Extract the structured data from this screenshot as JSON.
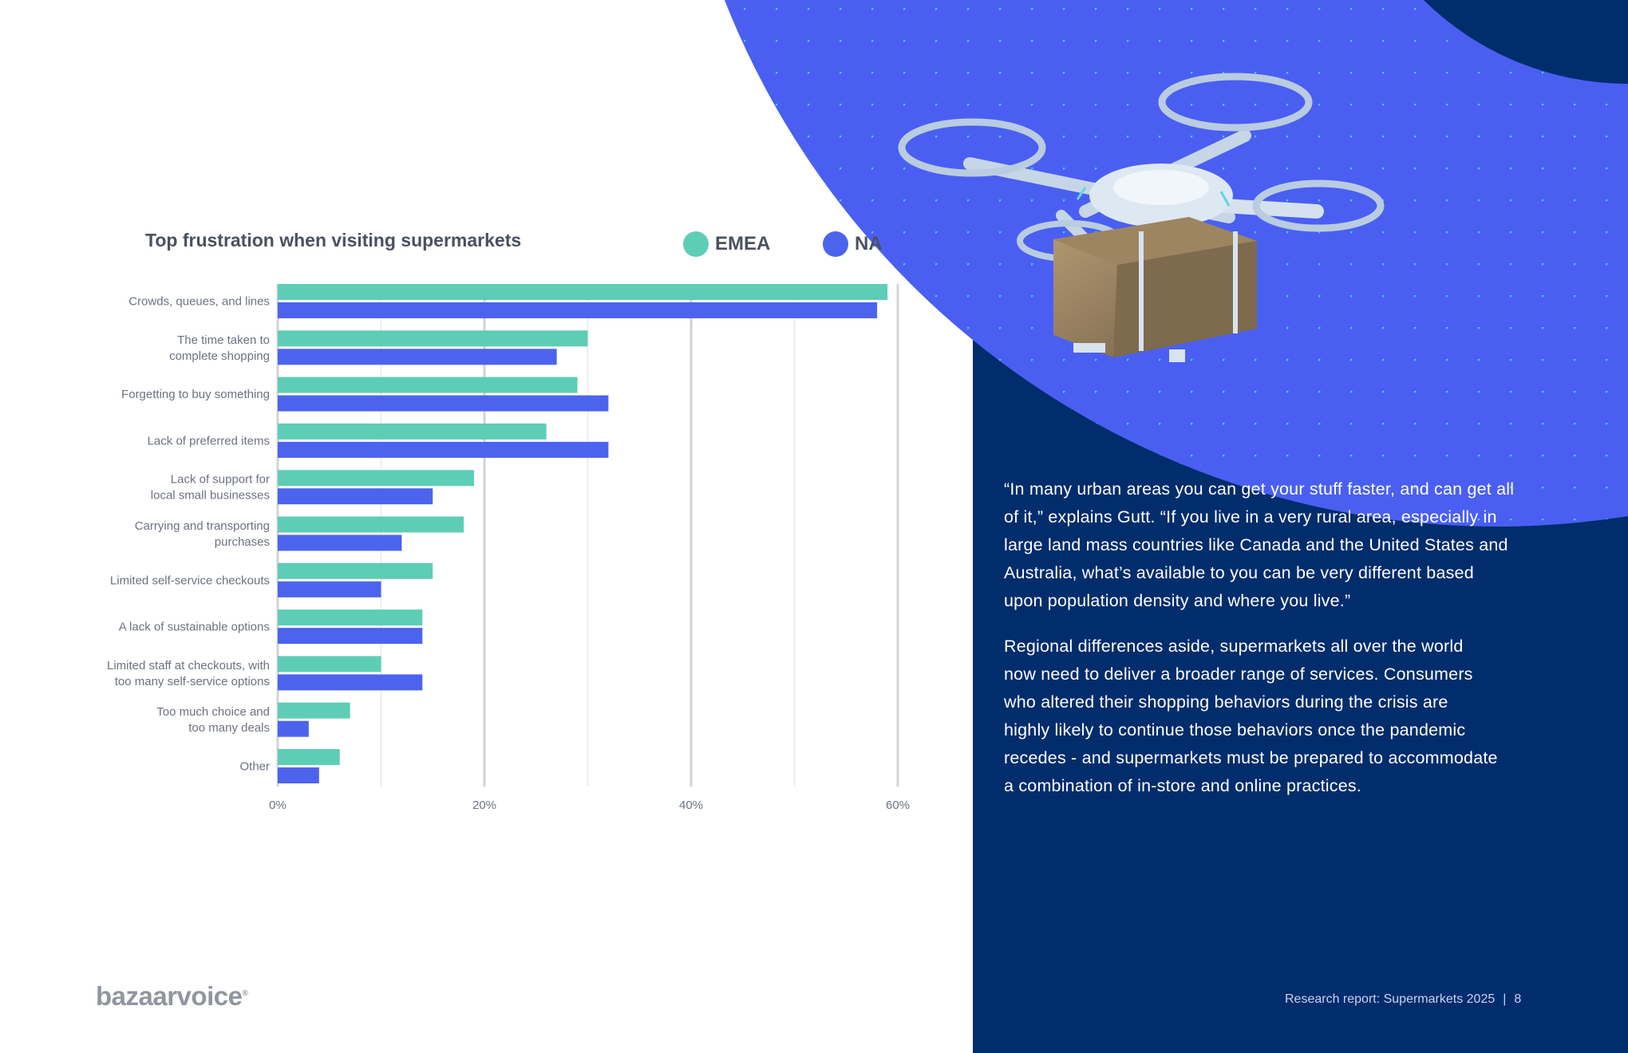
{
  "colors": {
    "emea": "#5ecdb5",
    "na": "#4c63ee",
    "navy": "#022d6c",
    "blue_circle": "#4a5ff2",
    "dot": "#3ad2d6",
    "grid": "#d4d7dc",
    "axis_text": "#6b7280"
  },
  "chart_data": {
    "type": "bar",
    "orientation": "horizontal",
    "title": "Top frustration when visiting supermarkets",
    "categories": [
      [
        "Crowds, queues, and lines"
      ],
      [
        "The time taken to",
        "complete shopping"
      ],
      [
        "Forgetting to buy something"
      ],
      [
        "Lack of preferred items"
      ],
      [
        "Lack of  support for",
        "local small businesses"
      ],
      [
        "Carrying and transporting",
        "purchases"
      ],
      [
        "Limited self-service checkouts"
      ],
      [
        "A lack of sustainable options"
      ],
      [
        "Limited staff at checkouts, with",
        "too many self-service options"
      ],
      [
        "Too much choice and",
        "too many deals"
      ],
      [
        "Other"
      ]
    ],
    "series": [
      {
        "name": "EMEA",
        "values": [
          59,
          30,
          29,
          26,
          19,
          18,
          15,
          14,
          10,
          7,
          6
        ]
      },
      {
        "name": "NA",
        "values": [
          58,
          27,
          32,
          32,
          15,
          12,
          10,
          14,
          14,
          3,
          4
        ]
      }
    ],
    "xlim": [
      0,
      60
    ],
    "xticks": [
      "0%",
      "20%",
      "40%",
      "60%"
    ],
    "legend_position": "top-right",
    "xlabel": "",
    "ylabel": ""
  },
  "legend": {
    "emea": "EMEA",
    "na": "NA"
  },
  "body": {
    "paragraph1_lines": [
      "“In many urban areas you can get your stuff faster, and can get all",
      "of it,” explains Gutt. “If you live in a very rural area, especially in",
      "large land mass countries like Canada and the United States and",
      "Australia, what’s available to you can be very different based",
      "upon population density and where you live.”"
    ],
    "paragraph2_lines": [
      "Regional differences aside, supermarkets all over the world",
      "now need to deliver a broader range of services. Consumers",
      "who altered their shopping behaviors during the crisis are",
      "highly likely to continue those behaviors once the pandemic",
      "recedes - and supermarkets must be prepared to accommodate",
      "a combination of in-store and online practices."
    ]
  },
  "footer": {
    "logo": "bazaarvoice",
    "report": "Research report: Supermarkets 2025",
    "separator": "|",
    "page": "8"
  },
  "image": {
    "subject": "delivery-drone-with-package"
  }
}
